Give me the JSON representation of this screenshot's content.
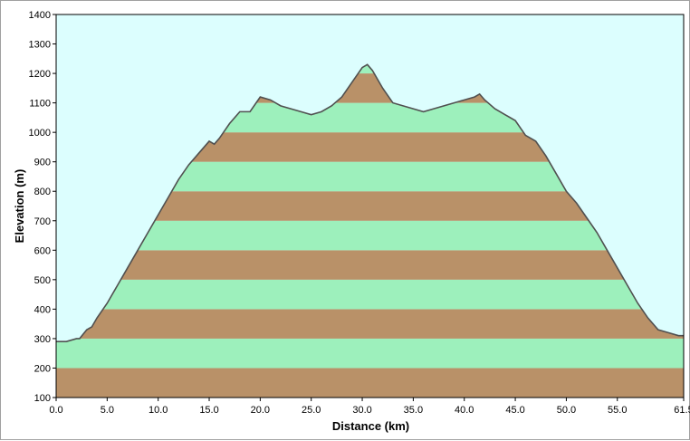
{
  "chart_data": {
    "type": "area",
    "xlabel": "Distance  (km)",
    "ylabel": "Elevation  (m)",
    "xlim": [
      0,
      61.5
    ],
    "ylim": [
      100,
      1400
    ],
    "x_ticks": [
      "0.0",
      "5.0",
      "10.0",
      "15.0",
      "20.0",
      "25.0",
      "30.0",
      "35.0",
      "40.0",
      "45.0",
      "50.0",
      "55.0",
      "61.5"
    ],
    "y_ticks": [
      "100",
      "200",
      "300",
      "400",
      "500",
      "600",
      "700",
      "800",
      "900",
      "1000",
      "1100",
      "1200",
      "1300",
      "1400"
    ],
    "band_step": 100,
    "grid": false,
    "legend": "none",
    "colors": {
      "sky": "#dcfefe",
      "band_light": "#9df0bc",
      "band_dark": "#b99168",
      "profile_line": "#505050"
    },
    "x": [
      0,
      1,
      2,
      2.3,
      3,
      3.5,
      4,
      5,
      6,
      7,
      8,
      9,
      10,
      11,
      12,
      13,
      14,
      15,
      15.5,
      16,
      17,
      18,
      19,
      20,
      21,
      22,
      23,
      24,
      25,
      26,
      27,
      28,
      29,
      30,
      30.5,
      31,
      32,
      33,
      34,
      35,
      36,
      37,
      38,
      39,
      40,
      41,
      41.5,
      42,
      43,
      44,
      45,
      46,
      47,
      48,
      49,
      50,
      51,
      52,
      53,
      54,
      55,
      56,
      57,
      58,
      59,
      60,
      61,
      61.5
    ],
    "y": [
      290,
      290,
      300,
      300,
      330,
      340,
      370,
      420,
      480,
      540,
      600,
      660,
      720,
      780,
      840,
      890,
      930,
      970,
      960,
      980,
      1030,
      1070,
      1070,
      1120,
      1110,
      1090,
      1080,
      1070,
      1060,
      1070,
      1090,
      1120,
      1170,
      1220,
      1230,
      1210,
      1150,
      1100,
      1090,
      1080,
      1070,
      1080,
      1090,
      1100,
      1110,
      1120,
      1130,
      1110,
      1080,
      1060,
      1040,
      990,
      970,
      920,
      860,
      800,
      760,
      710,
      660,
      600,
      540,
      480,
      420,
      370,
      330,
      320,
      310,
      310
    ]
  }
}
